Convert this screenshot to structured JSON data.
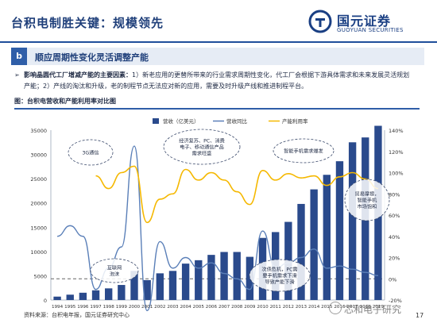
{
  "header": {
    "title": "台积电制胜关键：规模领先",
    "logo_cn": "国元证券",
    "logo_en": "GUOYUAN SECURITIES"
  },
  "section": {
    "badge": "b",
    "title": "顺应周期性变化灵活调整产能"
  },
  "body": {
    "bold": "影响晶圆代工厂增减产能的主要因素：",
    "text": "1）新老应用的更替所带来的行业需求周期性变化，代工厂会根据下游具体需求和未来发展灵活规划产能；2）产线的淘汰和升级，老的制程节点无法应对新的应用，需要及时升级产线和推进制程平台。"
  },
  "figure": {
    "title": "图：台积电营收和产能利用率对比图"
  },
  "chart_data": {
    "type": "bar",
    "legend": [
      "营收（亿美元）",
      "营收同比",
      "产能利用率"
    ],
    "categories": [
      "1994",
      "1995",
      "1996",
      "1997",
      "1998",
      "1999",
      "2000",
      "2001",
      "2002",
      "2003",
      "2004",
      "2005",
      "2006",
      "2007",
      "2008",
      "2009",
      "2010",
      "2011",
      "2012",
      "2013",
      "2014",
      "2015",
      "2016",
      "2017",
      "2018",
      "2019"
    ],
    "series": [
      {
        "name": "营收（亿美元）",
        "axis": "left",
        "values": [
          700,
          1100,
          1500,
          2000,
          2400,
          3100,
          6000,
          4100,
          5500,
          6000,
          7500,
          8200,
          9300,
          9900,
          9900,
          8900,
          12800,
          14000,
          16100,
          19800,
          22800,
          25800,
          28600,
          32500,
          33500,
          35900
        ]
      },
      {
        "name": "营收同比",
        "axis": "right",
        "values": [
          40,
          50,
          40,
          -10,
          10,
          30,
          125,
          -30,
          35,
          10,
          20,
          10,
          15,
          5,
          0,
          -10,
          45,
          10,
          15,
          20,
          28,
          10,
          12,
          9,
          6,
          3
        ]
      },
      {
        "name": "产能利用率",
        "axis": "right",
        "values": [
          null,
          null,
          null,
          97,
          85,
          100,
          106,
          53,
          75,
          80,
          103,
          93,
          100,
          93,
          82,
          70,
          102,
          93,
          99,
          95,
          97,
          88,
          96,
          100,
          94,
          85
        ]
      }
    ],
    "y_left": {
      "min": 0,
      "max": 35000,
      "ticks": [
        "0",
        "5000",
        "10000",
        "15000",
        "20000",
        "25000",
        "30000",
        "35000"
      ]
    },
    "y_right": {
      "min": -20,
      "max": 140,
      "ticks": [
        "-20%",
        "0%",
        "20%",
        "40%",
        "60%",
        "80%",
        "100%",
        "120%",
        "140%"
      ]
    },
    "annotations": [
      "3G通信",
      "经济复苏、PC、消费电子、移动通信产品需求旺盛",
      "智能手机需求爆发",
      "贸易摩擦，智能手机市场饱和",
      "互联网泡沫",
      "次债危机，PC需要手机需求下滑导致产能下滑"
    ]
  },
  "footer": {
    "source": "资料来源：台积电年报，国元证券研究中心",
    "page": "17",
    "watermark": "芯和电子研究"
  },
  "colors": {
    "bar": "#2a4a8c",
    "yoy": "#5a7fb8",
    "util": "#f5b800",
    "brand": "#1f4e9a"
  }
}
